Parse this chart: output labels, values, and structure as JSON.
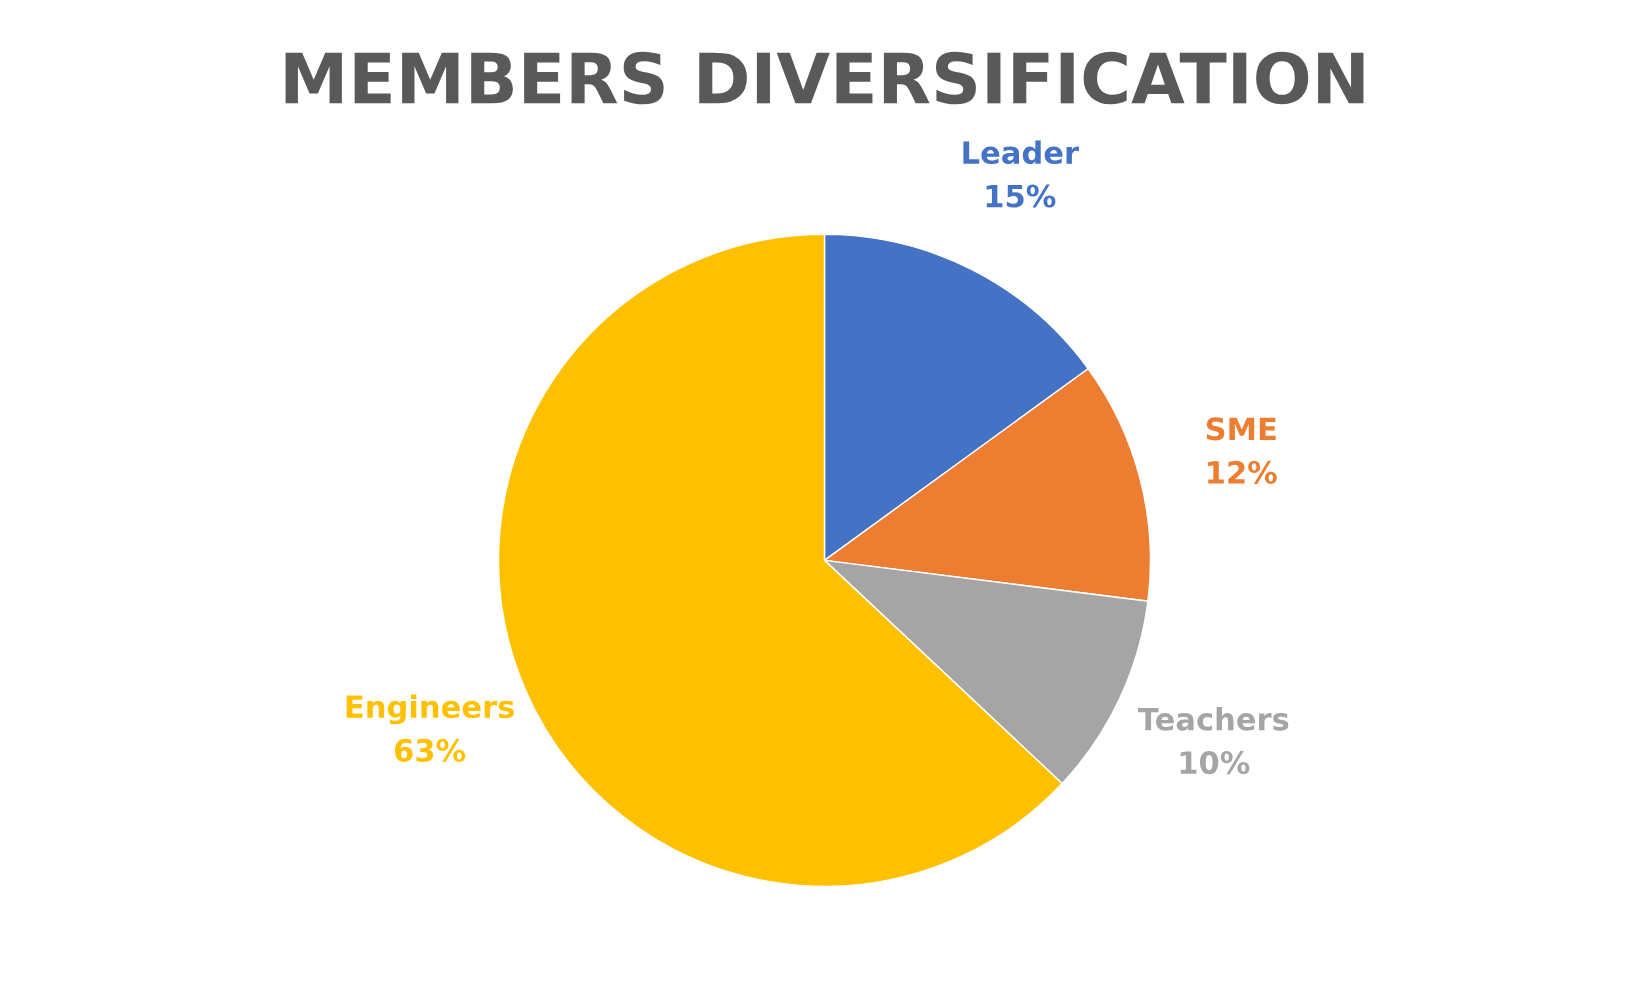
{
  "chart_data": {
    "type": "pie",
    "title": "MEMBERS DIVERSIFICATION",
    "categories": [
      "Leader",
      "SME",
      "Teachers",
      "Engineers"
    ],
    "values": [
      15,
      12,
      10,
      63
    ],
    "value_labels": [
      "15%",
      "12%",
      "10%",
      "63%"
    ],
    "colors": [
      "#4472c4",
      "#ed7d31",
      "#a5a5a5",
      "#ffc000"
    ],
    "legend": false
  }
}
